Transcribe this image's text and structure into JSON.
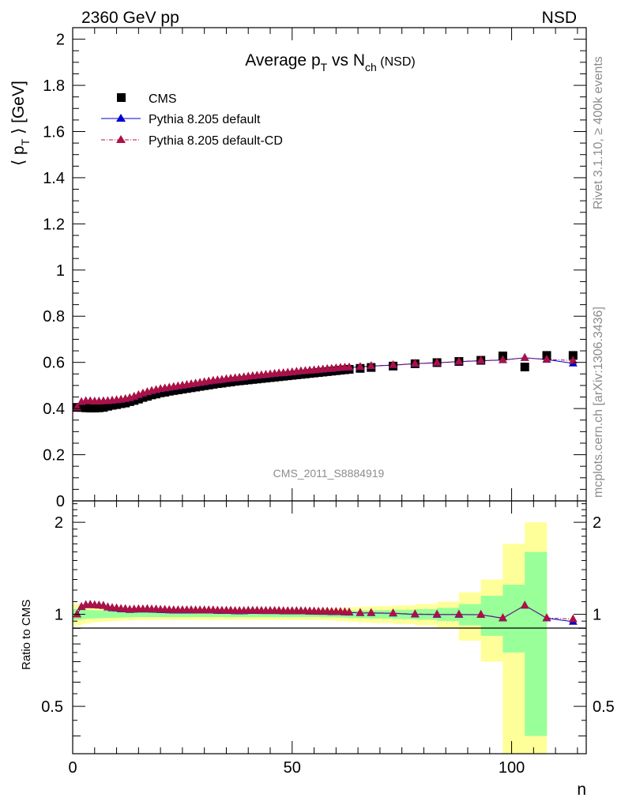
{
  "header": {
    "left": "2360 GeV pp",
    "right": "NSD"
  },
  "side_text": {
    "rivet": "Rivet 3.1.10, ≥ 400k events",
    "mcplots": "mcplots.cern.ch [arXiv:1306.3436]"
  },
  "chart_data": [
    {
      "type": "scatter",
      "title": "Average p_T vs N_ch (NSD)",
      "title_parts": {
        "a": "Average p",
        "a_sub": "T",
        "b": " vs N",
        "b_sub": "ch",
        "c": " (NSD)"
      },
      "ylabel": "⟨ p_T ⟩ [GeV]",
      "ylabel_parts": {
        "l": "⟨ p",
        "sub": "T",
        "r": " ⟩ [GeV]"
      },
      "xlabel": "n",
      "xlim": [
        0,
        117
      ],
      "ylim": [
        0,
        2.05
      ],
      "yticks": [
        "0",
        "0.2",
        "0.4",
        "0.6",
        "0.8",
        "1",
        "1.2",
        "1.4",
        "1.6",
        "1.8",
        "2"
      ],
      "xticks": [
        "0",
        "50",
        "100"
      ],
      "watermark": "CMS_2011_S8884919",
      "legend": [
        "CMS",
        "Pythia 8.205 default",
        "Pythia 8.205 default-CD"
      ],
      "x": [
        1,
        2,
        3,
        4,
        5,
        6,
        7,
        8,
        9,
        10,
        11,
        12,
        13,
        14,
        15,
        16,
        17,
        18,
        19,
        20,
        21,
        22,
        23,
        24,
        25,
        26,
        27,
        28,
        29,
        30,
        31,
        32,
        33,
        34,
        35,
        36,
        37,
        38,
        39,
        40,
        41,
        42,
        43,
        44,
        45,
        46,
        47,
        48,
        49,
        50,
        51,
        52,
        53,
        54,
        55,
        56,
        57,
        58,
        59,
        60,
        61,
        62,
        63,
        65.5,
        68,
        73,
        78,
        83,
        88,
        93,
        98,
        103,
        108,
        114
      ],
      "series": [
        {
          "name": "CMS",
          "color": "#000000",
          "marker": "square",
          "values": [
            0.405,
            0.405,
            0.403,
            0.402,
            0.402,
            0.403,
            0.405,
            0.41,
            0.414,
            0.417,
            0.421,
            0.424,
            0.43,
            0.435,
            0.441,
            0.448,
            0.453,
            0.459,
            0.463,
            0.468,
            0.471,
            0.475,
            0.478,
            0.481,
            0.484,
            0.487,
            0.49,
            0.493,
            0.496,
            0.499,
            0.502,
            0.505,
            0.508,
            0.51,
            0.513,
            0.515,
            0.518,
            0.52,
            0.522,
            0.524,
            0.526,
            0.528,
            0.53,
            0.532,
            0.534,
            0.536,
            0.538,
            0.54,
            0.542,
            0.544,
            0.546,
            0.548,
            0.55,
            0.552,
            0.554,
            0.556,
            0.558,
            0.56,
            0.562,
            0.564,
            0.566,
            0.568,
            0.57,
            0.574,
            0.578,
            0.584,
            0.594,
            0.599,
            0.604,
            0.609,
            0.628,
            0.58,
            0.63,
            0.63
          ]
        },
        {
          "name": "Pythia 8.205 default",
          "color": "#0000cc",
          "marker": "triangle",
          "values": [
            0.405,
            0.428,
            0.432,
            0.432,
            0.431,
            0.431,
            0.432,
            0.432,
            0.434,
            0.436,
            0.438,
            0.441,
            0.445,
            0.451,
            0.458,
            0.465,
            0.471,
            0.476,
            0.48,
            0.484,
            0.487,
            0.49,
            0.493,
            0.496,
            0.499,
            0.502,
            0.505,
            0.508,
            0.511,
            0.514,
            0.517,
            0.52,
            0.522,
            0.524,
            0.527,
            0.529,
            0.531,
            0.533,
            0.535,
            0.538,
            0.54,
            0.542,
            0.544,
            0.546,
            0.548,
            0.55,
            0.552,
            0.553,
            0.555,
            0.557,
            0.559,
            0.561,
            0.563,
            0.564,
            0.566,
            0.567,
            0.569,
            0.571,
            0.572,
            0.574,
            0.576,
            0.577,
            0.578,
            0.58,
            0.584,
            0.588,
            0.594,
            0.598,
            0.603,
            0.607,
            0.61,
            0.62,
            0.612,
            0.596
          ]
        },
        {
          "name": "Pythia 8.205 default-CD",
          "color": "#aa1144",
          "marker": "triangle",
          "values": [
            0.405,
            0.429,
            0.433,
            0.432,
            0.431,
            0.431,
            0.432,
            0.433,
            0.435,
            0.437,
            0.439,
            0.442,
            0.446,
            0.452,
            0.459,
            0.466,
            0.472,
            0.477,
            0.481,
            0.485,
            0.488,
            0.491,
            0.494,
            0.497,
            0.5,
            0.503,
            0.506,
            0.509,
            0.512,
            0.515,
            0.518,
            0.521,
            0.523,
            0.525,
            0.528,
            0.53,
            0.532,
            0.534,
            0.536,
            0.539,
            0.541,
            0.543,
            0.545,
            0.547,
            0.549,
            0.551,
            0.553,
            0.554,
            0.556,
            0.558,
            0.56,
            0.562,
            0.563,
            0.565,
            0.566,
            0.568,
            0.57,
            0.572,
            0.573,
            0.575,
            0.577,
            0.578,
            0.579,
            0.581,
            0.585,
            0.589,
            0.595,
            0.599,
            0.604,
            0.608,
            0.611,
            0.62,
            0.613,
            0.608
          ]
        }
      ]
    },
    {
      "type": "line",
      "ylabel": "Ratio to CMS",
      "xlabel": "n",
      "xlim": [
        0,
        117
      ],
      "ylim": [
        0.35,
        2.35
      ],
      "log_y": true,
      "yticks": [
        "0.5",
        "1",
        "2"
      ],
      "xticks": [
        "0",
        "50",
        "100"
      ],
      "band_edges": [
        0,
        1,
        2,
        3,
        4,
        5,
        6,
        7,
        8,
        9,
        10,
        11,
        12,
        13,
        14,
        15,
        16,
        17,
        18,
        19,
        20,
        21,
        22,
        23,
        24,
        25,
        26,
        27,
        28,
        29,
        30,
        31,
        32,
        33,
        34,
        35,
        36,
        37,
        38,
        39,
        40,
        41,
        42,
        43,
        44,
        45,
        46,
        47,
        48,
        49,
        50,
        51,
        52,
        53,
        54,
        55,
        56,
        57,
        58,
        59,
        60,
        61,
        62,
        63,
        65.5,
        68,
        73,
        78,
        83,
        88,
        93,
        98,
        103,
        108,
        115
      ],
      "band_green": [
        0.04,
        0.04,
        0.035,
        0.033,
        0.031,
        0.03,
        0.029,
        0.028,
        0.027,
        0.026,
        0.025,
        0.024,
        0.023,
        0.022,
        0.021,
        0.021,
        0.021,
        0.021,
        0.021,
        0.021,
        0.021,
        0.021,
        0.021,
        0.021,
        0.021,
        0.021,
        0.021,
        0.021,
        0.021,
        0.021,
        0.021,
        0.021,
        0.021,
        0.021,
        0.021,
        0.021,
        0.021,
        0.021,
        0.021,
        0.021,
        0.021,
        0.021,
        0.021,
        0.021,
        0.021,
        0.021,
        0.021,
        0.021,
        0.021,
        0.021,
        0.021,
        0.021,
        0.021,
        0.021,
        0.021,
        0.021,
        0.022,
        0.022,
        0.023,
        0.023,
        0.024,
        0.025,
        0.026,
        0.028,
        0.03,
        0.032,
        0.035,
        0.04,
        0.05,
        0.08,
        0.15,
        0.25,
        0.6
      ],
      "band_yellow": [
        0.08,
        0.08,
        0.07,
        0.065,
        0.06,
        0.058,
        0.056,
        0.054,
        0.052,
        0.05,
        0.048,
        0.046,
        0.045,
        0.044,
        0.043,
        0.042,
        0.042,
        0.042,
        0.042,
        0.042,
        0.042,
        0.042,
        0.042,
        0.042,
        0.042,
        0.042,
        0.042,
        0.042,
        0.042,
        0.042,
        0.042,
        0.042,
        0.042,
        0.042,
        0.042,
        0.042,
        0.042,
        0.042,
        0.042,
        0.042,
        0.042,
        0.042,
        0.042,
        0.042,
        0.042,
        0.042,
        0.042,
        0.042,
        0.042,
        0.042,
        0.042,
        0.042,
        0.042,
        0.042,
        0.042,
        0.042,
        0.044,
        0.044,
        0.046,
        0.046,
        0.048,
        0.05,
        0.052,
        0.056,
        0.06,
        0.064,
        0.07,
        0.08,
        0.1,
        0.18,
        0.3,
        0.7,
        1.0
      ],
      "series": [
        {
          "name": "Pythia 8.205 default",
          "color": "#0000cc",
          "values": [
            1.0,
            1.057,
            1.072,
            1.075,
            1.072,
            1.07,
            1.067,
            1.054,
            1.048,
            1.046,
            1.04,
            1.04,
            1.035,
            1.037,
            1.039,
            1.038,
            1.04,
            1.037,
            1.037,
            1.034,
            1.034,
            1.032,
            1.031,
            1.031,
            1.031,
            1.031,
            1.031,
            1.03,
            1.03,
            1.03,
            1.03,
            1.03,
            1.028,
            1.027,
            1.027,
            1.027,
            1.025,
            1.025,
            1.025,
            1.027,
            1.027,
            1.027,
            1.026,
            1.026,
            1.026,
            1.026,
            1.026,
            1.024,
            1.024,
            1.024,
            1.024,
            1.024,
            1.024,
            1.022,
            1.022,
            1.02,
            1.02,
            1.02,
            1.018,
            1.018,
            1.018,
            1.016,
            1.014,
            1.01,
            1.01,
            1.007,
            1.0,
            0.998,
            0.998,
            0.997,
            0.971,
            1.069,
            0.971,
            0.946
          ]
        },
        {
          "name": "Pythia 8.205 default-CD",
          "color": "#aa1144",
          "values": [
            1.0,
            1.059,
            1.074,
            1.075,
            1.072,
            1.07,
            1.067,
            1.056,
            1.051,
            1.048,
            1.043,
            1.042,
            1.037,
            1.039,
            1.041,
            1.04,
            1.042,
            1.039,
            1.039,
            1.036,
            1.036,
            1.034,
            1.033,
            1.033,
            1.033,
            1.033,
            1.033,
            1.032,
            1.032,
            1.032,
            1.032,
            1.032,
            1.03,
            1.029,
            1.029,
            1.029,
            1.027,
            1.027,
            1.027,
            1.029,
            1.029,
            1.029,
            1.028,
            1.028,
            1.028,
            1.028,
            1.028,
            1.026,
            1.026,
            1.026,
            1.026,
            1.026,
            1.024,
            1.024,
            1.022,
            1.022,
            1.022,
            1.022,
            1.02,
            1.02,
            1.019,
            1.018,
            1.016,
            1.012,
            1.012,
            1.009,
            1.002,
            1.0,
            1.0,
            0.998,
            0.973,
            1.069,
            0.973,
            0.965
          ]
        }
      ]
    }
  ]
}
